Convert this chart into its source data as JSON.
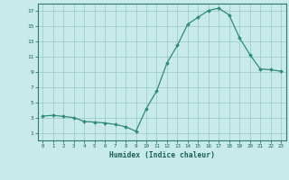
{
  "title": "",
  "xlabel": "Humidex (Indice chaleur)",
  "ylabel": "",
  "x": [
    0,
    1,
    2,
    3,
    4,
    5,
    6,
    7,
    8,
    9,
    10,
    11,
    12,
    13,
    14,
    15,
    16,
    17,
    18,
    19,
    20,
    21,
    22,
    23
  ],
  "y": [
    3.2,
    3.3,
    3.15,
    3.0,
    2.5,
    2.4,
    2.3,
    2.1,
    1.8,
    1.2,
    4.2,
    6.5,
    10.2,
    12.5,
    15.3,
    16.2,
    17.1,
    17.4,
    16.5,
    13.5,
    11.3,
    9.4,
    9.3,
    9.1
  ],
  "line_color": "#2d8b7a",
  "marker": "D",
  "marker_size": 2.0,
  "bg_color": "#c8eae8",
  "grid_color": "#a0cdc9",
  "axis_color": "#2d7a6e",
  "tick_label_color": "#1a5f55",
  "xlabel_color": "#1a5f55",
  "ylim": [
    0,
    18
  ],
  "xlim": [
    -0.5,
    23.5
  ],
  "yticks": [
    1,
    3,
    5,
    7,
    9,
    11,
    13,
    15,
    17
  ],
  "xticks": [
    0,
    1,
    2,
    3,
    4,
    5,
    6,
    7,
    8,
    9,
    10,
    11,
    12,
    13,
    14,
    15,
    16,
    17,
    18,
    19,
    20,
    21,
    22,
    23
  ]
}
